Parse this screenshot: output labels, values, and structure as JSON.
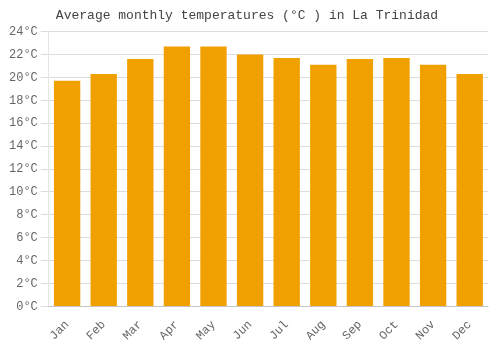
{
  "chart_data": {
    "type": "bar",
    "title": "Average monthly temperatures (°C ) in La Trinidad",
    "categories": [
      "Jan",
      "Feb",
      "Mar",
      "Apr",
      "May",
      "Jun",
      "Jul",
      "Aug",
      "Sep",
      "Oct",
      "Nov",
      "Dec"
    ],
    "values": [
      19.7,
      20.3,
      21.6,
      22.7,
      22.7,
      22.0,
      21.7,
      21.1,
      21.6,
      21.7,
      21.1,
      20.3
    ],
    "color": "#F0A000",
    "ylim": [
      0,
      24
    ],
    "yticks": [
      {
        "value": 0,
        "label": "0°C"
      },
      {
        "value": 2,
        "label": "2°C"
      },
      {
        "value": 4,
        "label": "4°C"
      },
      {
        "value": 6,
        "label": "6°C"
      },
      {
        "value": 8,
        "label": "8°C"
      },
      {
        "value": 10,
        "label": "10°C"
      },
      {
        "value": 12,
        "label": "12°C"
      },
      {
        "value": 14,
        "label": "14°C"
      },
      {
        "value": 16,
        "label": "16°C"
      },
      {
        "value": 18,
        "label": "18°C"
      },
      {
        "value": 20,
        "label": "20°C"
      },
      {
        "value": 22,
        "label": "22°C"
      },
      {
        "value": 24,
        "label": "24°C"
      }
    ],
    "grid": true
  }
}
